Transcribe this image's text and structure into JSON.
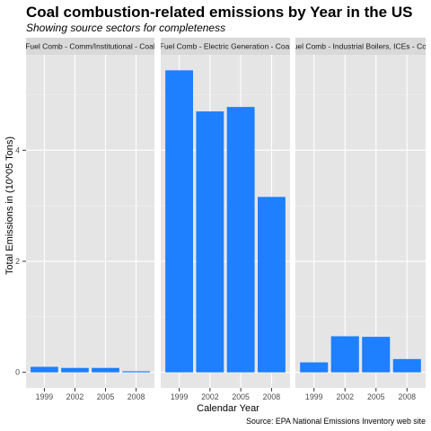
{
  "chart_data": {
    "type": "bar",
    "title": "Coal combustion-related emissions by Year in the US",
    "subtitle": "Showing source sectors for completeness",
    "xlabel": "Calendar Year",
    "ylabel": "Total Emissions in (10^05 Tons)",
    "caption": "Source: EPA National Emissions Inventory web site",
    "categories": [
      "1999",
      "2002",
      "2005",
      "2008"
    ],
    "ylim": [
      -0.28,
      5.72
    ],
    "yticks": [
      0,
      2,
      4
    ],
    "grid": true,
    "bar_color": "#1E7FFF",
    "panel_background": "#E5E5E5",
    "strip_background": "#D9D9D9",
    "facets": [
      {
        "name": "Fuel Comb - Comm/Institutional - Coal",
        "values": [
          0.1,
          0.08,
          0.08,
          0.02
        ]
      },
      {
        "name": "Fuel Comb - Electric Generation - Coal",
        "values": [
          5.44,
          4.7,
          4.78,
          3.16
        ]
      },
      {
        "name": "Fuel Comb - Industrial Boilers, ICEs - Coal",
        "values": [
          0.18,
          0.65,
          0.64,
          0.24
        ]
      }
    ]
  }
}
